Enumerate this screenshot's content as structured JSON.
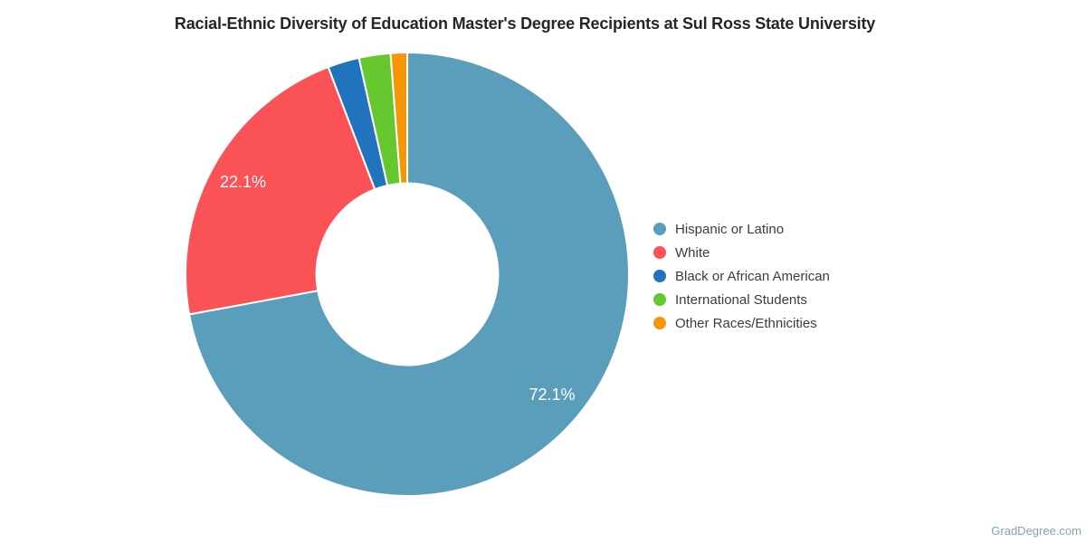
{
  "page": {
    "watermark": "GradDegree.com",
    "background_color": "#ffffff",
    "title_color": "#262626",
    "legend_text_color": "#3c3c3c",
    "watermark_color": "#81a3b3"
  },
  "chart_data": {
    "type": "pie",
    "subtype": "donut",
    "title": "Racial-Ethnic Diversity of Education Master's Degree Recipients at Sul Ross State University",
    "legend_position": "right",
    "legend_marker": "circle",
    "start_angle_deg": 0,
    "direction": "clockwise",
    "donut_hole_ratio": 0.41,
    "slice_border_color": "#ffffff",
    "value_label_color": "#ffffff",
    "value_label_radius_ratio": 0.85,
    "slices": [
      {
        "label": "Hispanic or Latino",
        "value": 72.1,
        "display": "72.1%",
        "color": "#5A9EBB",
        "show_label": true
      },
      {
        "label": "White",
        "value": 22.1,
        "display": "22.1%",
        "color": "#FB5258",
        "show_label": true
      },
      {
        "label": "Black or African American",
        "value": 2.3,
        "display": "2.3%",
        "color": "#2173BE",
        "show_label": false
      },
      {
        "label": "International Students",
        "value": 2.3,
        "display": "2.3%",
        "color": "#66C72E",
        "show_label": false
      },
      {
        "label": "Other Races/Ethnicities",
        "value": 1.2,
        "display": "1.2%",
        "color": "#F89601",
        "show_label": false
      }
    ]
  }
}
